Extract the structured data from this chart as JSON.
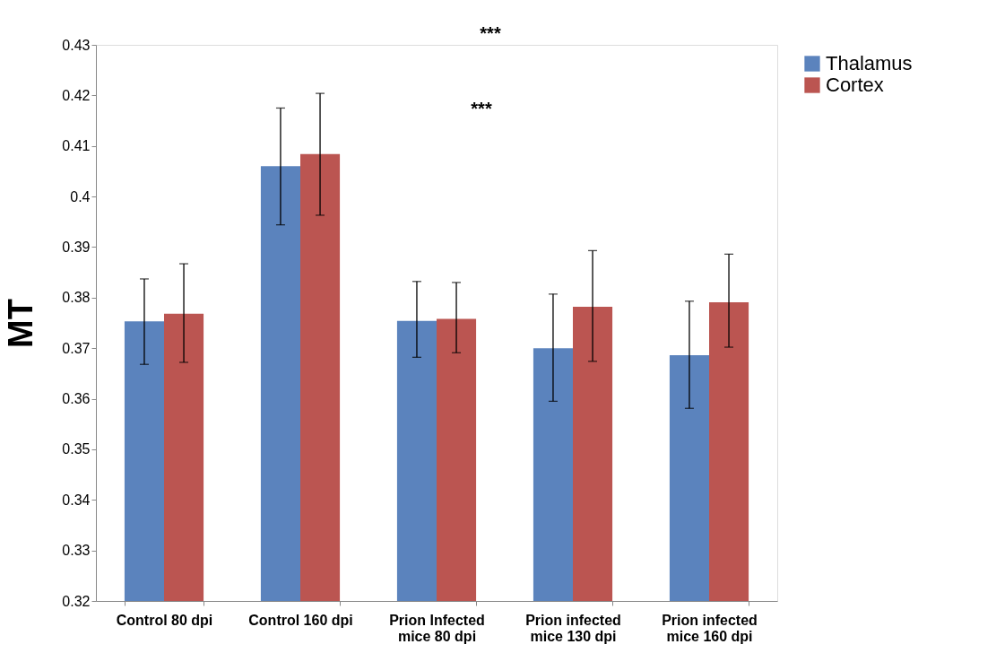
{
  "chart_data": {
    "type": "bar",
    "categories": [
      "Control 80 dpi",
      "Control 160 dpi",
      "Prion Infected mice 80 dpi",
      "Prion infected mice 130 dpi",
      "Prion infected mice 160 dpi"
    ],
    "series": [
      {
        "name": "Thalamus",
        "color": "#5b83bd",
        "values": [
          0.3753,
          0.406,
          0.3754,
          0.37,
          0.3686
        ],
        "errors": [
          [
            0.3668,
            0.3837
          ],
          [
            0.3944,
            0.4175
          ],
          [
            0.3682,
            0.3832
          ],
          [
            0.3595,
            0.3807
          ],
          [
            0.3581,
            0.3793
          ]
        ]
      },
      {
        "name": "Cortex",
        "color": "#bb5551",
        "values": [
          0.3768,
          0.4084,
          0.3758,
          0.3782,
          0.3791
        ],
        "errors": [
          [
            0.3672,
            0.3867
          ],
          [
            0.3963,
            0.4204
          ],
          [
            0.3691,
            0.383
          ],
          [
            0.3674,
            0.3893
          ],
          [
            0.3702,
            0.3886
          ]
        ]
      }
    ],
    "ylabel": "MT",
    "ylim": [
      0.32,
      0.43
    ],
    "yticks": [
      0.32,
      0.33,
      0.34,
      0.35,
      0.36,
      0.37,
      0.38,
      0.39,
      {
        "value": 0.4,
        "label": "0.4"
      },
      0.41,
      0.42,
      0.43
    ],
    "annotations": [
      "***",
      "***"
    ],
    "grid": false,
    "legend": "right"
  }
}
